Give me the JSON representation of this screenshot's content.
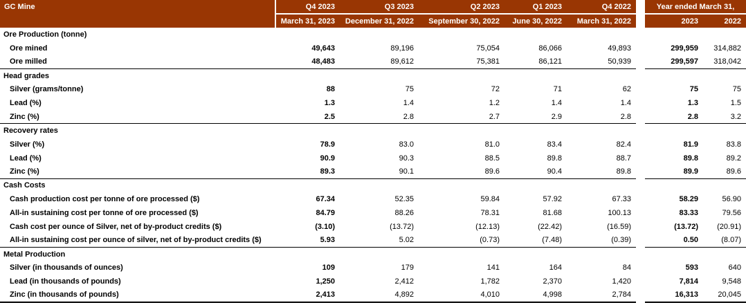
{
  "colors": {
    "header_bg": "#993603",
    "header_text": "#ffffff",
    "divider_line": "#000000"
  },
  "table": {
    "title": "GC Mine",
    "header": {
      "quarters": [
        {
          "label": "Q4 2023",
          "sub": "March 31, 2023"
        },
        {
          "label": "Q3 2023",
          "sub": "December 31, 2022"
        },
        {
          "label": "Q2 2023",
          "sub": "September 30, 2022"
        },
        {
          "label": "Q1 2023",
          "sub": "June 30, 2022"
        },
        {
          "label": "Q4 2022",
          "sub": "March 31, 2022"
        }
      ],
      "year_group": {
        "label": "Year ended March 31,",
        "cols": [
          "2023",
          "2022"
        ]
      }
    },
    "sections": [
      {
        "name": "Ore Production (tonne)",
        "rows": [
          {
            "label": "Ore mined",
            "values": [
              "49,643",
              "89,196",
              "75,054",
              "86,066",
              "49,893"
            ],
            "year": [
              "299,959",
              "314,882"
            ]
          },
          {
            "label": "Ore milled",
            "values": [
              "48,483",
              "89,612",
              "75,381",
              "86,121",
              "50,939"
            ],
            "year": [
              "299,597",
              "318,042"
            ]
          }
        ]
      },
      {
        "name": "Head grades",
        "rows": [
          {
            "label": "Silver (grams/tonne)",
            "values": [
              "88",
              "75",
              "72",
              "71",
              "62"
            ],
            "year": [
              "75",
              "75"
            ]
          },
          {
            "label": "Lead (%)",
            "values": [
              "1.3",
              "1.4",
              "1.2",
              "1.4",
              "1.4"
            ],
            "year": [
              "1.3",
              "1.5"
            ]
          },
          {
            "label": "Zinc (%)",
            "values": [
              "2.5",
              "2.8",
              "2.7",
              "2.9",
              "2.8"
            ],
            "year": [
              "2.8",
              "3.2"
            ]
          }
        ]
      },
      {
        "name": "Recovery rates",
        "rows": [
          {
            "label": "Silver (%)",
            "values": [
              "78.9",
              "83.0",
              "81.0",
              "83.4",
              "82.4"
            ],
            "year": [
              "81.9",
              "83.8"
            ]
          },
          {
            "label": "Lead (%)",
            "values": [
              "90.9",
              "90.3",
              "88.5",
              "89.8",
              "88.7"
            ],
            "year": [
              "89.8",
              "89.2"
            ]
          },
          {
            "label": "Zinc (%)",
            "values": [
              "89.3",
              "90.1",
              "89.6",
              "90.4",
              "89.8"
            ],
            "year": [
              "89.9",
              "89.6"
            ]
          }
        ]
      },
      {
        "name": "Cash Costs",
        "rows": [
          {
            "label": "Cash production cost per tonne of ore processed ($)",
            "values": [
              "67.34",
              "52.35",
              "59.84",
              "57.92",
              "67.33"
            ],
            "year": [
              "58.29",
              "56.90"
            ]
          },
          {
            "label": "All-in sustaining cost per tonne of ore processed ($)",
            "values": [
              "84.79",
              "88.26",
              "78.31",
              "81.68",
              "100.13"
            ],
            "year": [
              "83.33",
              "79.56"
            ]
          },
          {
            "label": "Cash cost per ounce of Silver, net of by-product credits ($)",
            "values": [
              "(3.10)",
              "(13.72)",
              "(12.13)",
              "(22.42)",
              "(16.59)"
            ],
            "year": [
              "(13.72)",
              "(20.91)"
            ]
          },
          {
            "label": "All-in sustaining cost per ounce of silver, net of by-product credits ($)",
            "values": [
              "5.93",
              "5.02",
              "(0.73)",
              "(7.48)",
              "(0.39)"
            ],
            "year": [
              "0.50",
              "(8.07)"
            ]
          }
        ]
      },
      {
        "name": "Metal Production",
        "rows": [
          {
            "label": "Silver (in thousands of ounces)",
            "values": [
              "109",
              "179",
              "141",
              "164",
              "84"
            ],
            "year": [
              "593",
              "640"
            ]
          },
          {
            "label": "Lead (in thousands of pounds)",
            "values": [
              "1,250",
              "2,412",
              "1,782",
              "2,370",
              "1,420"
            ],
            "year": [
              "7,814",
              "9,548"
            ]
          },
          {
            "label": "Zinc (in thousands of pounds)",
            "values": [
              "2,413",
              "4,892",
              "4,010",
              "4,998",
              "2,784"
            ],
            "year": [
              "16,313",
              "20,045"
            ]
          }
        ]
      }
    ]
  }
}
